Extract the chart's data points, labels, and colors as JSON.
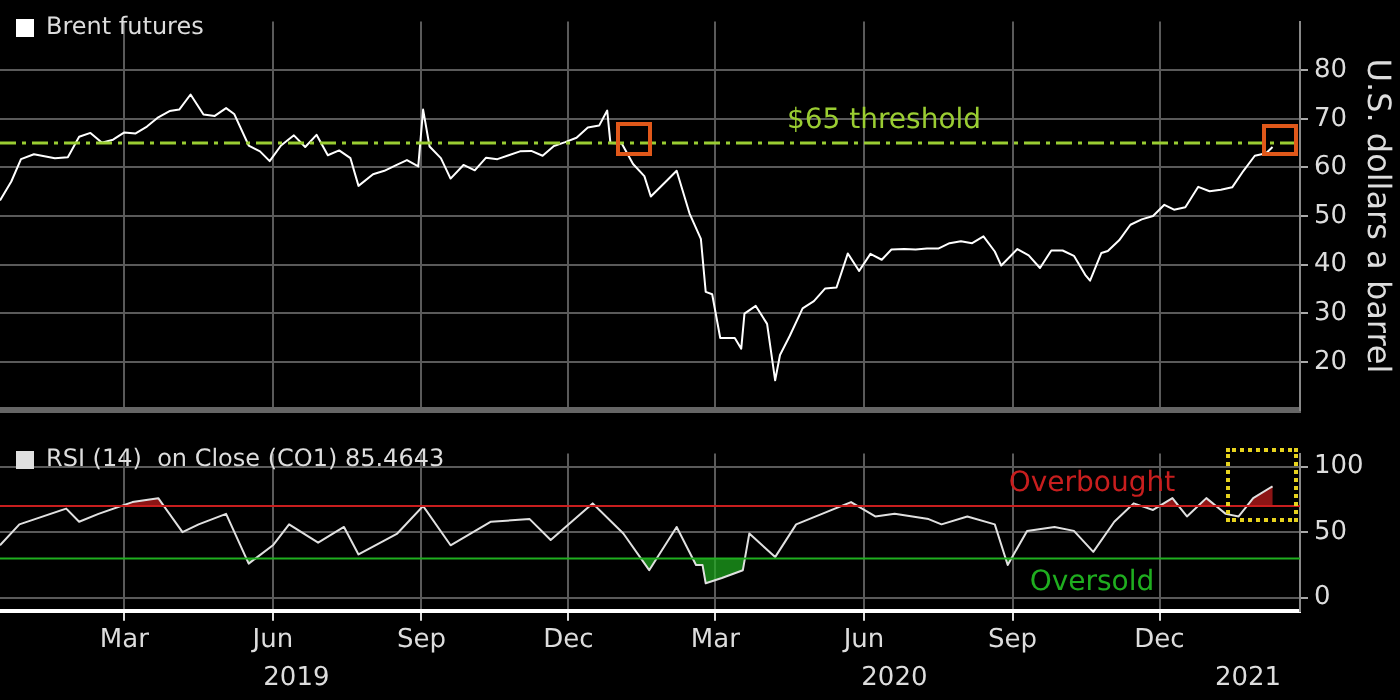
{
  "chart_data": [
    {
      "type": "line",
      "ylabel": "U.S. dollars a barrel",
      "legend": "top left",
      "grid": true,
      "marker": "none",
      "line_style": "solid",
      "tick_labels": "y",
      "xlim": [
        "2018-12-28",
        "2021-03-12"
      ],
      "xticks": [
        {
          "value": "2019-03-15",
          "label": null
        },
        {
          "value": "2019-06-15",
          "label": null
        },
        {
          "value": "2019-09-15",
          "label": null
        },
        {
          "value": "2019-12-15",
          "label": null
        },
        {
          "value": "2020-03-15",
          "label": null
        },
        {
          "value": "2020-06-15",
          "label": null
        },
        {
          "value": "2020-09-15",
          "label": null
        },
        {
          "value": "2020-12-15",
          "label": null
        }
      ],
      "ylim": [
        10,
        90
      ],
      "yticks": [
        20,
        30,
        40,
        50,
        60,
        70,
        80
      ],
      "ref_lines": [
        {
          "axis": "y",
          "value": 65,
          "label": "$65 threshold",
          "color": "#9acd32",
          "line_style": "dashed"
        }
      ],
      "series": [
        {
          "name": "Brent futures",
          "color": "#ffffff",
          "x": [
            "2018-12-28",
            "2019-01-04",
            "2019-01-10",
            "2019-01-18",
            "2019-01-31",
            "2019-02-08",
            "2019-02-15",
            "2019-02-22",
            "2019-03-01",
            "2019-03-08",
            "2019-03-15",
            "2019-03-22",
            "2019-03-29",
            "2019-04-05",
            "2019-04-12",
            "2019-04-18",
            "2019-04-25",
            "2019-05-03",
            "2019-05-10",
            "2019-05-17",
            "2019-05-22",
            "2019-05-31",
            "2019-06-07",
            "2019-06-13",
            "2019-06-20",
            "2019-06-28",
            "2019-07-05",
            "2019-07-12",
            "2019-07-19",
            "2019-07-26",
            "2019-08-02",
            "2019-08-07",
            "2019-08-16",
            "2019-08-23",
            "2019-08-30",
            "2019-09-06",
            "2019-09-13",
            "2019-09-16",
            "2019-09-20",
            "2019-09-27",
            "2019-10-03",
            "2019-10-11",
            "2019-10-18",
            "2019-10-25",
            "2019-11-01",
            "2019-11-08",
            "2019-11-15",
            "2019-11-22",
            "2019-11-29",
            "2019-12-06",
            "2019-12-13",
            "2019-12-20",
            "2019-12-27",
            "2020-01-03",
            "2020-01-08",
            "2020-01-10",
            "2020-01-17",
            "2020-01-24",
            "2020-01-31",
            "2020-02-04",
            "2020-02-14",
            "2020-02-20",
            "2020-02-28",
            "2020-03-06",
            "2020-03-09",
            "2020-03-13",
            "2020-03-18",
            "2020-03-27",
            "2020-03-31",
            "2020-04-02",
            "2020-04-09",
            "2020-04-16",
            "2020-04-21",
            "2020-04-24",
            "2020-04-30",
            "2020-05-08",
            "2020-05-15",
            "2020-05-22",
            "2020-05-29",
            "2020-06-05",
            "2020-06-12",
            "2020-06-19",
            "2020-06-26",
            "2020-07-02",
            "2020-07-10",
            "2020-07-17",
            "2020-07-24",
            "2020-07-31",
            "2020-08-07",
            "2020-08-14",
            "2020-08-21",
            "2020-08-28",
            "2020-09-04",
            "2020-09-08",
            "2020-09-18",
            "2020-09-25",
            "2020-10-02",
            "2020-10-09",
            "2020-10-16",
            "2020-10-23",
            "2020-10-30",
            "2020-11-02",
            "2020-11-09",
            "2020-11-13",
            "2020-11-20",
            "2020-11-27",
            "2020-12-04",
            "2020-12-11",
            "2020-12-18",
            "2020-12-24",
            "2020-12-31",
            "2021-01-08",
            "2021-01-15",
            "2021-01-22",
            "2021-01-29",
            "2021-02-05",
            "2021-02-12",
            "2021-02-19",
            "2021-02-23"
          ],
          "values": [
            53.2,
            57.1,
            61.7,
            62.7,
            61.9,
            62.1,
            66.3,
            67.1,
            65.1,
            65.7,
            67.2,
            67.0,
            68.4,
            70.3,
            71.6,
            71.9,
            75.0,
            70.9,
            70.6,
            72.2,
            71.0,
            64.5,
            63.3,
            61.3,
            64.5,
            66.6,
            64.2,
            66.7,
            62.5,
            63.5,
            61.9,
            56.2,
            58.6,
            59.3,
            60.4,
            61.5,
            60.2,
            71.9,
            64.3,
            61.9,
            57.7,
            60.5,
            59.4,
            62.0,
            61.7,
            62.5,
            63.3,
            63.4,
            62.4,
            64.4,
            65.2,
            66.1,
            68.2,
            68.6,
            71.7,
            65.0,
            64.9,
            60.7,
            58.2,
            54.0,
            57.3,
            59.3,
            50.5,
            45.3,
            34.4,
            33.9,
            24.9,
            24.9,
            22.7,
            29.9,
            31.5,
            27.8,
            16.2,
            21.4,
            25.3,
            31.0,
            32.5,
            35.1,
            35.3,
            42.3,
            38.7,
            42.2,
            41.0,
            43.1,
            43.2,
            43.1,
            43.3,
            43.3,
            44.4,
            44.8,
            44.4,
            45.8,
            42.7,
            39.8,
            43.2,
            41.9,
            39.3,
            42.9,
            42.9,
            41.8,
            37.9,
            36.7,
            42.4,
            42.8,
            45.0,
            48.2,
            49.3,
            50.0,
            52.3,
            51.3,
            51.8,
            56.0,
            55.1,
            55.4,
            55.9,
            59.3,
            62.4,
            62.9,
            64.2
          ]
        }
      ]
    },
    {
      "type": "line",
      "legend": "top left",
      "grid": true,
      "marker": "none",
      "line_style": "solid",
      "xlim": [
        "2018-12-28",
        "2021-03-12"
      ],
      "xticks": [
        {
          "value": "2019-03-15",
          "label": "Mar"
        },
        {
          "value": "2019-06-15",
          "label": "Jun"
        },
        {
          "value": "2019-09-15",
          "label": "Sep"
        },
        {
          "value": "2019-12-15",
          "label": "Dec"
        },
        {
          "value": "2020-03-15",
          "label": "Mar"
        },
        {
          "value": "2020-06-15",
          "label": "Jun"
        },
        {
          "value": "2020-09-15",
          "label": "Sep"
        },
        {
          "value": "2020-12-15",
          "label": "Dec"
        }
      ],
      "annotations": [
        "2019",
        "2020",
        "2021"
      ],
      "ylim": [
        -10,
        110
      ],
      "yticks": [
        0,
        50,
        100
      ],
      "ref_lines": [
        {
          "axis": "y",
          "value": 70,
          "label": "Overbought",
          "color": "#c81e1e",
          "line_style": "solid"
        },
        {
          "axis": "y",
          "value": 30,
          "label": "Oversold",
          "color": "#1fae1f",
          "line_style": "solid"
        }
      ],
      "series": [
        {
          "name": "RSI (14)  on Close (CO1) 85.4643",
          "color": "#e0e0e0",
          "x": [
            "2018-12-28",
            "2019-01-09",
            "2019-02-07",
            "2019-02-15",
            "2019-02-27",
            "2019-03-20",
            "2019-04-05",
            "2019-04-20",
            "2019-04-30",
            "2019-05-17",
            "2019-05-31",
            "2019-06-15",
            "2019-06-25",
            "2019-07-13",
            "2019-07-29",
            "2019-08-07",
            "2019-08-31",
            "2019-09-16",
            "2019-10-03",
            "2019-10-28",
            "2019-11-21",
            "2019-12-04",
            "2019-12-30",
            "2020-01-18",
            "2020-02-03",
            "2020-02-20",
            "2020-03-03",
            "2020-03-07",
            "2020-03-09",
            "2020-03-19",
            "2020-04-01",
            "2020-04-05",
            "2020-04-21",
            "2020-05-04",
            "2020-05-20",
            "2020-06-07",
            "2020-06-22",
            "2020-07-04",
            "2020-07-25",
            "2020-08-02",
            "2020-08-18",
            "2020-09-04",
            "2020-09-12",
            "2020-09-24",
            "2020-10-11",
            "2020-10-23",
            "2020-11-04",
            "2020-11-17",
            "2020-11-29",
            "2020-12-11",
            "2020-12-23",
            "2021-01-01",
            "2021-01-13",
            "2021-01-25",
            "2021-02-02",
            "2021-02-11",
            "2021-02-23"
          ],
          "values": [
            40,
            56,
            68,
            58,
            64,
            73,
            76,
            50,
            56,
            64,
            26,
            40,
            56,
            42,
            54,
            33,
            49,
            70,
            40,
            58,
            60,
            44,
            72,
            49,
            21,
            54,
            25,
            25,
            11,
            15,
            21,
            49,
            31,
            56,
            64,
            73,
            62,
            64,
            60,
            56,
            62,
            56,
            25,
            51,
            54,
            51,
            35,
            58,
            72,
            67,
            76,
            62,
            76,
            64,
            62,
            76,
            85
          ]
        }
      ]
    }
  ]
}
